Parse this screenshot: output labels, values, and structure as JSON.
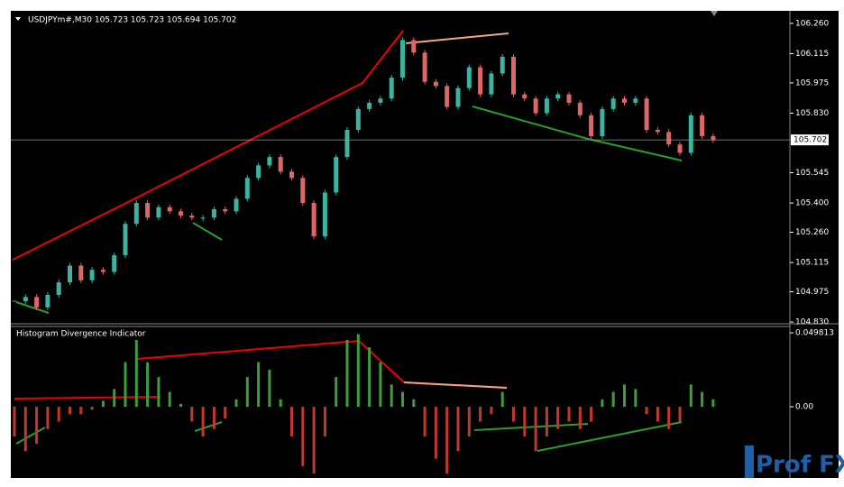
{
  "chart_data": [
    {
      "type": "candlestick",
      "title": "USDJPYm#,M30  105.723 105.723 105.694 105.702",
      "values": [
        104.93,
        104.95,
        104.9,
        104.96,
        105.02,
        105.1,
        105.03,
        105.08,
        105.07,
        105.15,
        105.3,
        105.4,
        105.33,
        105.38,
        105.36,
        105.34,
        105.33,
        105.33,
        105.37,
        105.36,
        105.42,
        105.52,
        105.58,
        105.62,
        105.55,
        105.52,
        105.4,
        105.24,
        105.45,
        105.62,
        105.75,
        105.85,
        105.88,
        105.9,
        106.0,
        106.18,
        106.12,
        105.98,
        105.96,
        105.86,
        105.95,
        106.05,
        105.92,
        106.02,
        106.1,
        105.92,
        105.9,
        105.83,
        105.9,
        105.92,
        105.88,
        105.82,
        105.72,
        105.85,
        105.9,
        105.88,
        105.9,
        105.75,
        105.74,
        105.68,
        105.64,
        105.82,
        105.72,
        105.7
      ],
      "up_color": "#3cb3a0",
      "down_color": "#e06666",
      "current_price": 105.702,
      "ylim": [
        104.826,
        106.32
      ],
      "yticks": [
        {
          "value": 106.26,
          "label": "106.260"
        },
        {
          "value": 106.115,
          "label": "106.115"
        },
        {
          "value": 105.975,
          "label": "105.975"
        },
        {
          "value": 105.83,
          "label": "105.830"
        },
        {
          "value": 105.545,
          "label": "105.545"
        },
        {
          "value": 105.4,
          "label": "105.400"
        },
        {
          "value": 105.26,
          "label": "105.260"
        },
        {
          "value": 105.115,
          "label": "105.115"
        },
        {
          "value": 104.975,
          "label": "104.975"
        },
        {
          "value": 104.83,
          "label": "104.830"
        }
      ]
    },
    {
      "type": "bar",
      "title": "Histogram Divergence Indicator",
      "values": [
        -0.02,
        -0.03,
        -0.025,
        -0.015,
        -0.01,
        -0.005,
        -0.005,
        -0.002,
        0.004,
        0.012,
        0.03,
        0.045,
        0.03,
        0.02,
        0.01,
        0.002,
        -0.01,
        -0.02,
        -0.015,
        -0.008,
        0.005,
        0.02,
        0.03,
        0.025,
        0.005,
        -0.02,
        -0.04,
        -0.045,
        -0.02,
        0.02,
        0.045,
        0.049,
        0.04,
        0.03,
        0.015,
        0.01,
        0.005,
        -0.02,
        -0.035,
        -0.045,
        -0.03,
        -0.02,
        -0.01,
        -0.005,
        0.01,
        -0.01,
        -0.02,
        -0.03,
        -0.02,
        -0.015,
        -0.01,
        -0.015,
        -0.01,
        0.005,
        0.01,
        0.015,
        0.012,
        -0.005,
        -0.01,
        -0.015,
        -0.01,
        0.015,
        0.01,
        0.005
      ],
      "up_color": "#3c9e3c",
      "down_color": "#c0392b",
      "ylim": [
        -0.048,
        0.0541
      ],
      "yticks": [
        0.049813,
        {
          "value": 0,
          "label": "0.00"
        }
      ]
    }
  ],
  "watermark": "Prof FX"
}
